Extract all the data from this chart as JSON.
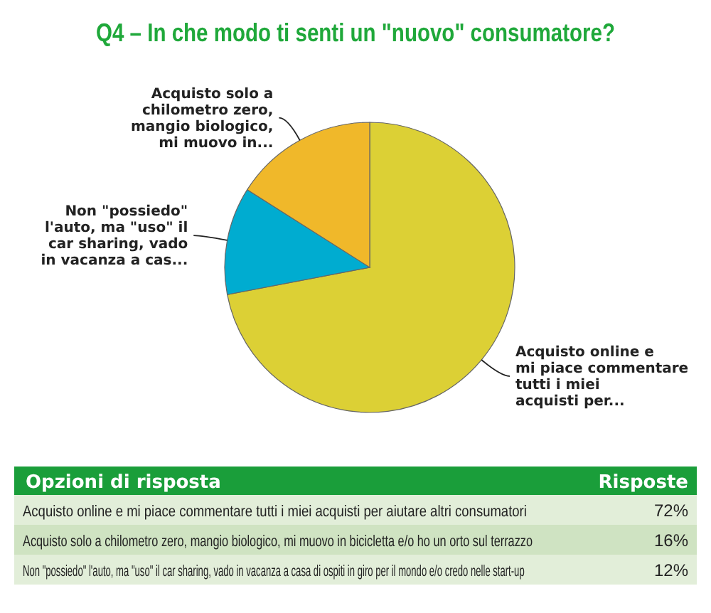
{
  "chart_data": {
    "type": "pie",
    "title": "Q4 – In che modo ti senti un \"nuovo\" consumatore?",
    "categories": [
      "Acquisto online e mi piace commentare tutti i miei acquisti per...",
      "Non \"possiedo\" l'auto, ma \"uso\" il car sharing, vado in vacanza a cas...",
      "Acquisto solo a chilometro zero, mangio biologico, mi muovo in..."
    ],
    "values": [
      72,
      12,
      16
    ],
    "colors": [
      "#dcd035",
      "#00acd0",
      "#f0b82a"
    ],
    "annotations": [
      "Opzioni di risposta",
      "Risposte",
      "72%",
      "12%",
      "16%",
      "Acquisto online e mi piace commentare tutti i miei acquisti per aiutare altri consumatori",
      "Non \"possiedo\" l'auto, ma \"uso\" il car sharing, vado in vacanza a casa di ospiti in giro per il mondo e/o credo nelle start-up",
      "Acquisto solo a chilometro zero, mangio biologico, mi muovo in bicicletta e/o ho un orto sul terrazzo"
    ]
  }
}
